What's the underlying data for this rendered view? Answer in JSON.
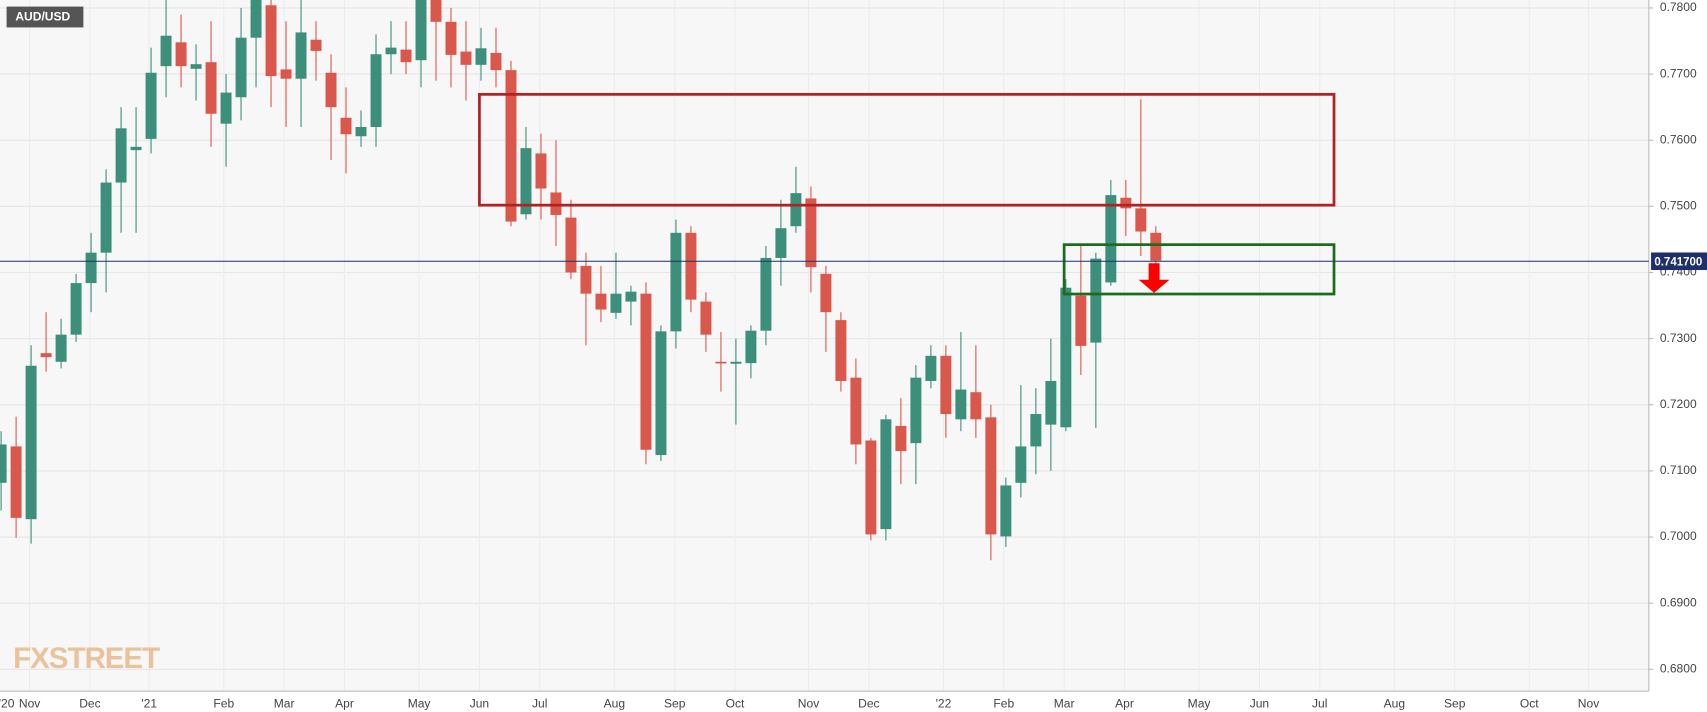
{
  "chart_data": {
    "type": "candlestick",
    "symbol": "AUD/USD",
    "watermark": "FXSTREET",
    "up_color": "#3b8f7b",
    "down_color": "#d9584b",
    "grid": true,
    "ylim": [
      0.6767,
      0.7812
    ],
    "yticks": [
      {
        "value": 0.68,
        "label": "0.6800"
      },
      {
        "value": 0.69,
        "label": "0.6900"
      },
      {
        "value": 0.7,
        "label": "0.7000"
      },
      {
        "value": 0.71,
        "label": "0.7100"
      },
      {
        "value": 0.72,
        "label": "0.7200"
      },
      {
        "value": 0.73,
        "label": "0.7300"
      },
      {
        "value": 0.74,
        "label": "0.7400"
      },
      {
        "value": 0.75,
        "label": "0.7500"
      },
      {
        "value": 0.76,
        "label": "0.7600"
      },
      {
        "value": 0.77,
        "label": "0.7700"
      },
      {
        "value": 0.78,
        "label": "0.7800"
      }
    ],
    "last_price": {
      "value": 0.7417,
      "label": "0.741700"
    },
    "xlabels": [
      "'20",
      "Nov",
      "Dec",
      "'21",
      "Feb",
      "Mar",
      "Apr",
      "May",
      "Jun",
      "Jul",
      "Aug",
      "Sep",
      "Oct",
      "Nov",
      "Dec",
      "'22",
      "Feb",
      "Mar",
      "Apr",
      "May",
      "Jun",
      "Jul",
      "Aug",
      "Sep",
      "Oct",
      "Nov"
    ],
    "open": [
      0.7082,
      0.7137,
      0.7027,
      0.7278,
      0.7265,
      0.7306,
      0.7384,
      0.743,
      0.7536,
      0.7585,
      0.7602,
      0.7712,
      0.7748,
      0.7708,
      0.7718,
      0.7625,
      0.7665,
      0.7755,
      0.7804,
      0.7707,
      0.7693,
      0.7752,
      0.7702,
      0.7634,
      0.7606,
      0.762,
      0.773,
      0.7737,
      0.7721,
      0.7812,
      0.7779,
      0.7734,
      0.7714,
      0.7732,
      0.7706,
      0.7488,
      0.758,
      0.7521,
      0.7483,
      0.741,
      0.7368,
      0.7339,
      0.7356,
      0.7368,
      0.7124,
      0.7311,
      0.746,
      0.7356,
      0.7265,
      0.7262,
      0.7263,
      0.7312,
      0.7422,
      0.747,
      0.7512,
      0.7398,
      0.7328,
      0.7241,
      0.7146,
      0.7012,
      0.7168,
      0.7142,
      0.7236,
      0.7274,
      0.7178,
      0.7219,
      0.7181,
      0.7001,
      0.7082,
      0.7137,
      0.717,
      0.7166,
      0.7365,
      0.7294,
      0.7385,
      0.7513,
      0.7497,
      0.746
    ],
    "high": [
      0.716,
      0.7182,
      0.729,
      0.734,
      0.733,
      0.7398,
      0.746,
      0.7556,
      0.765,
      0.765,
      0.774,
      0.7812,
      0.779,
      0.7745,
      0.778,
      0.77,
      0.78,
      0.7812,
      0.7812,
      0.778,
      0.7812,
      0.778,
      0.773,
      0.768,
      0.7645,
      0.776,
      0.778,
      0.778,
      0.7812,
      0.7812,
      0.78,
      0.778,
      0.777,
      0.777,
      0.772,
      0.762,
      0.761,
      0.76,
      0.751,
      0.743,
      0.741,
      0.743,
      0.738,
      0.7385,
      0.732,
      0.748,
      0.747,
      0.737,
      0.731,
      0.73,
      0.732,
      0.744,
      0.751,
      0.756,
      0.753,
      0.741,
      0.734,
      0.727,
      0.715,
      0.7185,
      0.721,
      0.726,
      0.729,
      0.729,
      0.731,
      0.729,
      0.72,
      0.709,
      0.723,
      0.7225,
      0.73,
      0.739,
      0.744,
      0.743,
      0.754,
      0.754,
      0.7662,
      0.747
    ],
    "low": [
      0.704,
      0.6999,
      0.699,
      0.725,
      0.7255,
      0.7295,
      0.734,
      0.737,
      0.746,
      0.746,
      0.758,
      0.7665,
      0.768,
      0.766,
      0.759,
      0.756,
      0.763,
      0.768,
      0.765,
      0.762,
      0.762,
      0.769,
      0.757,
      0.755,
      0.759,
      0.759,
      0.77,
      0.77,
      0.768,
      0.769,
      0.768,
      0.766,
      0.769,
      0.768,
      0.747,
      0.748,
      0.748,
      0.744,
      0.739,
      0.729,
      0.7325,
      0.733,
      0.732,
      0.711,
      0.7115,
      0.7285,
      0.734,
      0.728,
      0.722,
      0.717,
      0.724,
      0.729,
      0.738,
      0.746,
      0.737,
      0.728,
      0.722,
      0.711,
      0.6995,
      0.6995,
      0.708,
      0.708,
      0.7225,
      0.715,
      0.716,
      0.715,
      0.6965,
      0.6985,
      0.706,
      0.7095,
      0.71,
      0.716,
      0.7245,
      0.7165,
      0.738,
      0.7455,
      0.7425,
      0.741
    ],
    "close": [
      0.714,
      0.7029,
      0.7259,
      0.7272,
      0.7306,
      0.7384,
      0.743,
      0.7536,
      0.7618,
      0.759,
      0.7702,
      0.7758,
      0.7712,
      0.7715,
      0.764,
      0.7672,
      0.7755,
      0.7812,
      0.7697,
      0.7693,
      0.7763,
      0.7735,
      0.765,
      0.7609,
      0.762,
      0.773,
      0.774,
      0.7718,
      0.7812,
      0.7779,
      0.7729,
      0.7714,
      0.7739,
      0.7706,
      0.7477,
      0.7588,
      0.7527,
      0.7487,
      0.74,
      0.7368,
      0.7344,
      0.7368,
      0.7371,
      0.7132,
      0.7311,
      0.746,
      0.7359,
      0.7306,
      0.7263,
      0.7265,
      0.7312,
      0.7422,
      0.7467,
      0.752,
      0.7408,
      0.734,
      0.7236,
      0.714,
      0.7004,
      0.7178,
      0.713,
      0.7241,
      0.7274,
      0.7186,
      0.7223,
      0.7178,
      0.7004,
      0.7078,
      0.7137,
      0.7186,
      0.7236,
      0.7377,
      0.7289,
      0.7421,
      0.7517,
      0.7497,
      0.7462,
      0.7418
    ]
  }
}
